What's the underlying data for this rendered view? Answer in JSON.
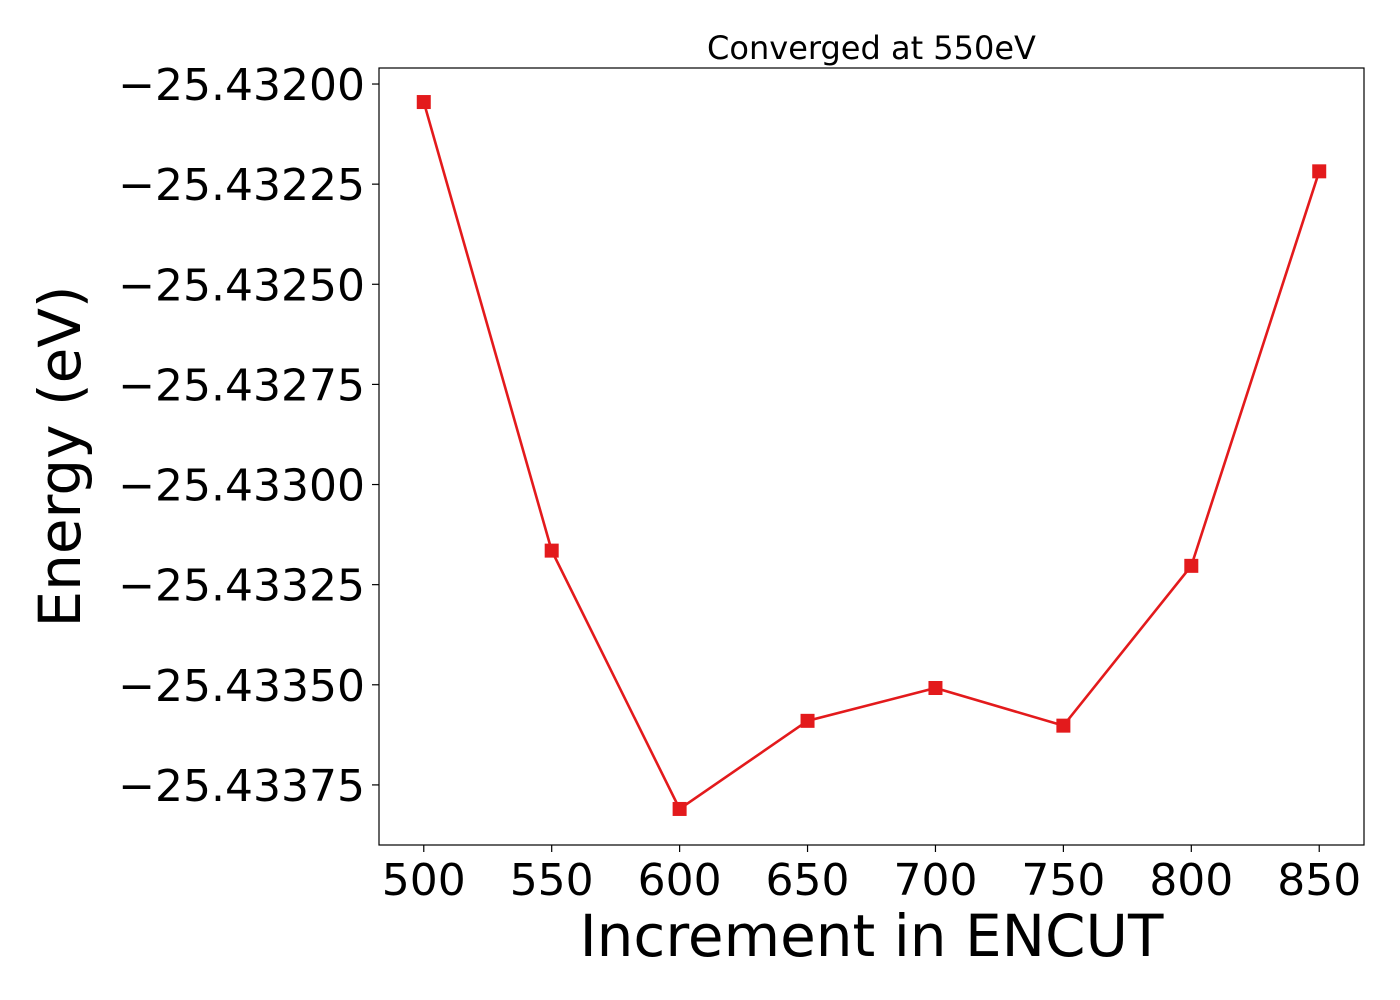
{
  "chart_data": {
    "type": "line",
    "title": "Converged at 550eV",
    "xlabel": "Increment in ENCUT",
    "ylabel": "Energy (eV)",
    "x": [
      500,
      550,
      600,
      650,
      700,
      750,
      800,
      850
    ],
    "series": [
      {
        "values": [
          -25.432045,
          -25.433165,
          -25.43381,
          -25.43359,
          -25.433508,
          -25.433602,
          -25.433203,
          -25.432218
        ],
        "color": "#e31a1c",
        "marker": "square"
      }
    ],
    "xticks": [
      500,
      550,
      600,
      650,
      700,
      750,
      800,
      850
    ],
    "xtick_labels": [
      "500",
      "550",
      "600",
      "650",
      "700",
      "750",
      "800",
      "850"
    ],
    "yticks": [
      -25.432,
      -25.43225,
      -25.4325,
      -25.43275,
      -25.433,
      -25.43325,
      -25.4335,
      -25.43375
    ],
    "ytick_labels": [
      "−25.43200",
      "−25.43225",
      "−25.43250",
      "−25.43275",
      "−25.43300",
      "−25.43325",
      "−25.43350",
      "−25.43375"
    ],
    "xlim": [
      482.5,
      867.5
    ],
    "ylim": [
      -25.4339,
      -25.43196
    ],
    "grid": false,
    "legend": "none"
  }
}
